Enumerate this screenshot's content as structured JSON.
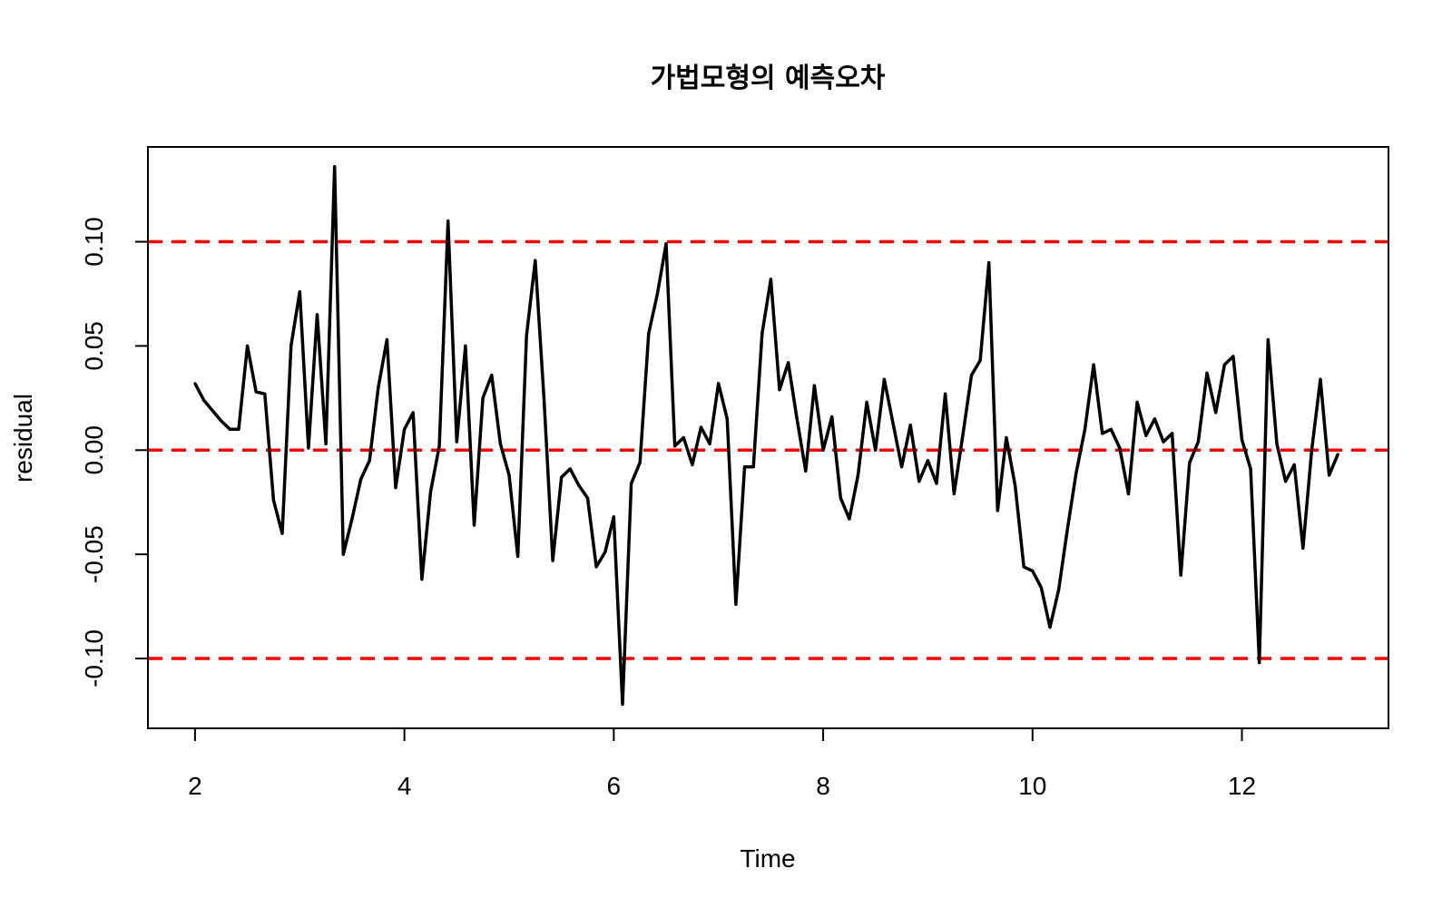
{
  "chart_data": {
    "type": "line",
    "title": "가법모형의 예측오차",
    "xlabel": "Time",
    "ylabel": "residual",
    "xlim": [
      1.55,
      13.4
    ],
    "ylim": [
      -0.1335,
      0.1455
    ],
    "x_ticks": [
      2,
      4,
      6,
      8,
      10,
      12
    ],
    "x_tick_labels": [
      "2",
      "4",
      "6",
      "8",
      "10",
      "12"
    ],
    "y_ticks": [
      -0.1,
      -0.05,
      0.0,
      0.05,
      0.1
    ],
    "y_tick_labels": [
      "-0.10",
      "-0.05",
      "0.00",
      "0.05",
      "0.10"
    ],
    "grid": false,
    "legend": "none",
    "x_start": 2.0,
    "x_step": 0.0833333,
    "series": [
      {
        "color": "#000000",
        "values": [
          0.032,
          0.024,
          0.019,
          0.014,
          0.01,
          0.01,
          0.05,
          0.028,
          0.027,
          -0.024,
          -0.04,
          0.05,
          0.076,
          0.001,
          0.065,
          0.003,
          0.136,
          -0.05,
          -0.033,
          -0.014,
          -0.005,
          0.03,
          0.053,
          -0.018,
          0.01,
          0.018,
          -0.062,
          -0.02,
          0.002,
          0.11,
          0.004,
          0.05,
          -0.036,
          0.025,
          0.036,
          0.003,
          -0.012,
          -0.051,
          0.055,
          0.091,
          0.025,
          -0.053,
          -0.013,
          -0.009,
          -0.017,
          -0.023,
          -0.056,
          -0.049,
          -0.032,
          -0.122,
          -0.016,
          -0.006,
          0.056,
          0.075,
          0.099,
          0.002,
          0.006,
          -0.007,
          0.011,
          0.003,
          0.032,
          0.015,
          -0.074,
          -0.008,
          -0.008,
          0.056,
          0.082,
          0.029,
          0.042,
          0.015,
          -0.01,
          0.031,
          0.0,
          0.016,
          -0.023,
          -0.033,
          -0.012,
          0.023,
          0.0,
          0.034,
          0.013,
          -0.008,
          0.012,
          -0.015,
          -0.005,
          -0.016,
          0.027,
          -0.021,
          0.007,
          0.036,
          0.043,
          0.09,
          -0.029,
          0.006,
          -0.017,
          -0.056,
          -0.058,
          -0.066,
          -0.085,
          -0.067,
          -0.038,
          -0.011,
          0.01,
          0.041,
          0.008,
          0.01,
          0.001,
          -0.021,
          0.023,
          0.007,
          0.015,
          0.004,
          0.008,
          -0.06,
          -0.006,
          0.004,
          0.037,
          0.018,
          0.041,
          0.045,
          0.005,
          -0.009,
          -0.102,
          0.053,
          0.003,
          -0.015,
          -0.007,
          -0.047,
          0.0,
          0.034,
          -0.012,
          -0.002
        ]
      }
    ],
    "reference_lines": [
      {
        "y": 0.1,
        "color": "#ff0000",
        "style": "dashed"
      },
      {
        "y": 0.0,
        "color": "#ff0000",
        "style": "dashed"
      },
      {
        "y": -0.1,
        "color": "#ff0000",
        "style": "dashed"
      }
    ]
  }
}
